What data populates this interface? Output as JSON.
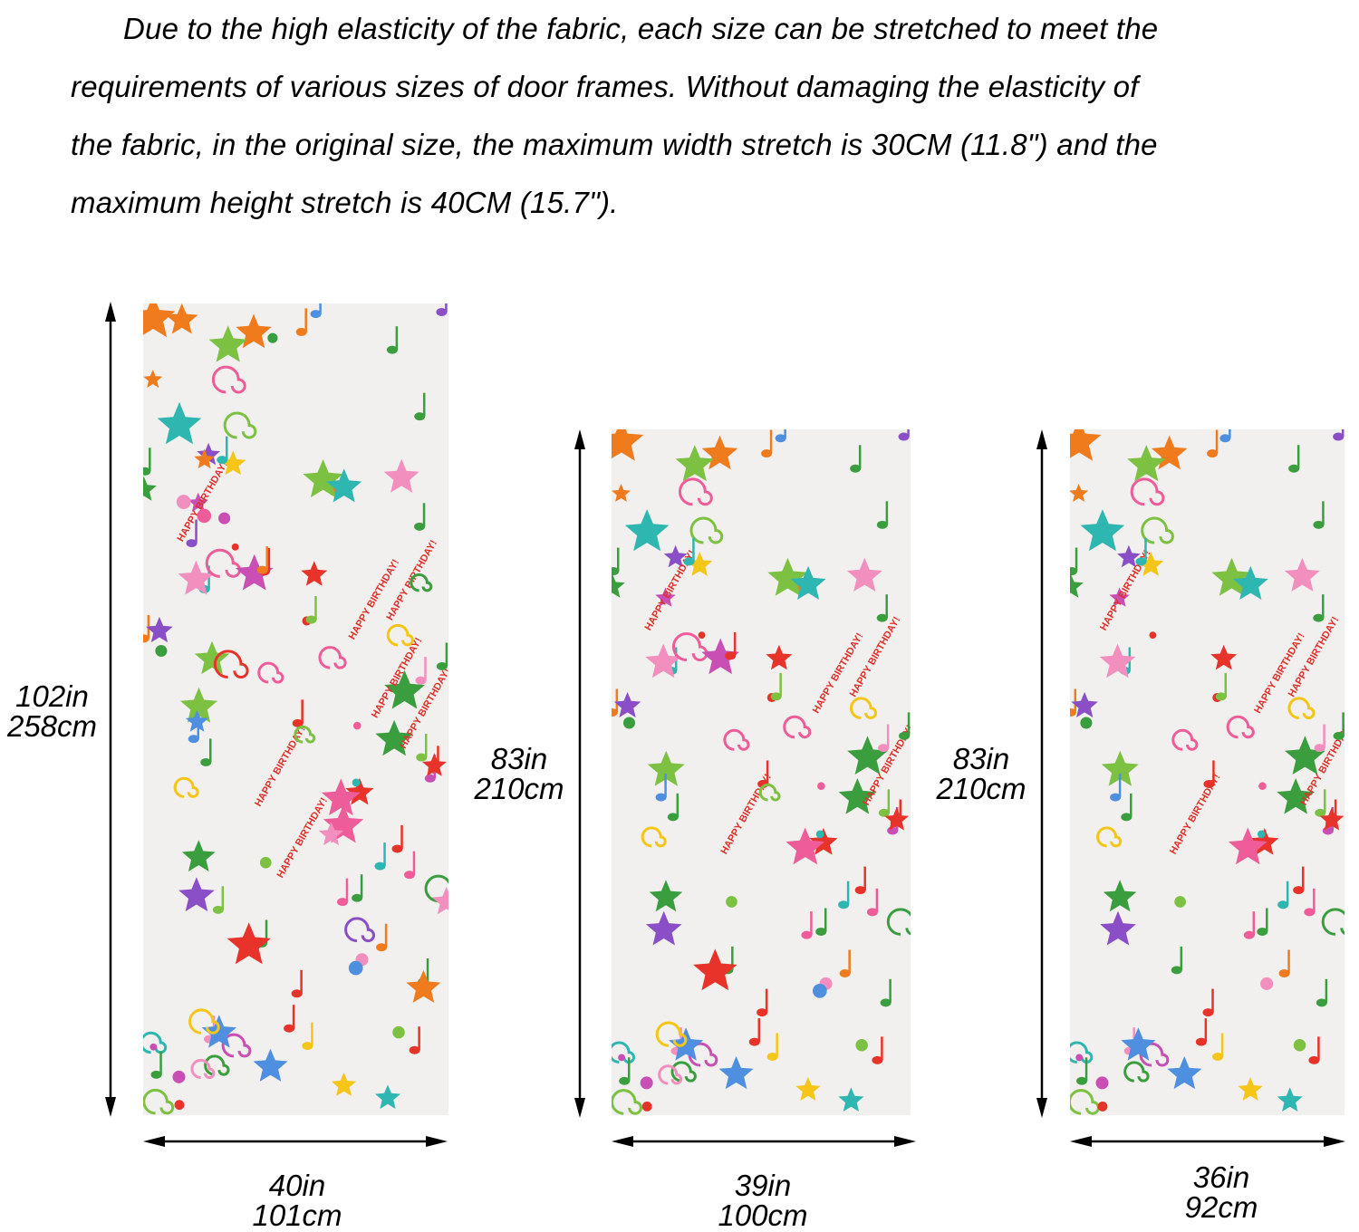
{
  "description": {
    "lines": [
      "Due to the high elasticity of the fabric, each size can be stretched to meet the",
      "requirements of various sizes of door frames. Without damaging the elasticity of",
      "the fabric, in the original size, the maximum width stretch is 30CM (11.8\") and the",
      "maximum height stretch is 40CM (15.7\")."
    ]
  },
  "curtains": [
    {
      "height_in": "102in",
      "height_cm": "258cm",
      "width_in": "40in",
      "width_cm": "101cm"
    },
    {
      "height_in": "83in",
      "height_cm": "210cm",
      "width_in": "39in",
      "width_cm": "100cm"
    },
    {
      "height_in": "83in",
      "height_cm": "210cm",
      "width_in": "36in",
      "width_cm": "92cm"
    }
  ],
  "pattern": {
    "text": "HAPPY BIRTHDAY!",
    "colors": [
      "#e8332a",
      "#f07b1c",
      "#f5c518",
      "#7cc142",
      "#3a9e3f",
      "#2eb6b0",
      "#4f8fe0",
      "#8a4fc7",
      "#c94fb5",
      "#ef5c9a",
      "#f28fbf"
    ]
  },
  "arrow_color": "#000000"
}
